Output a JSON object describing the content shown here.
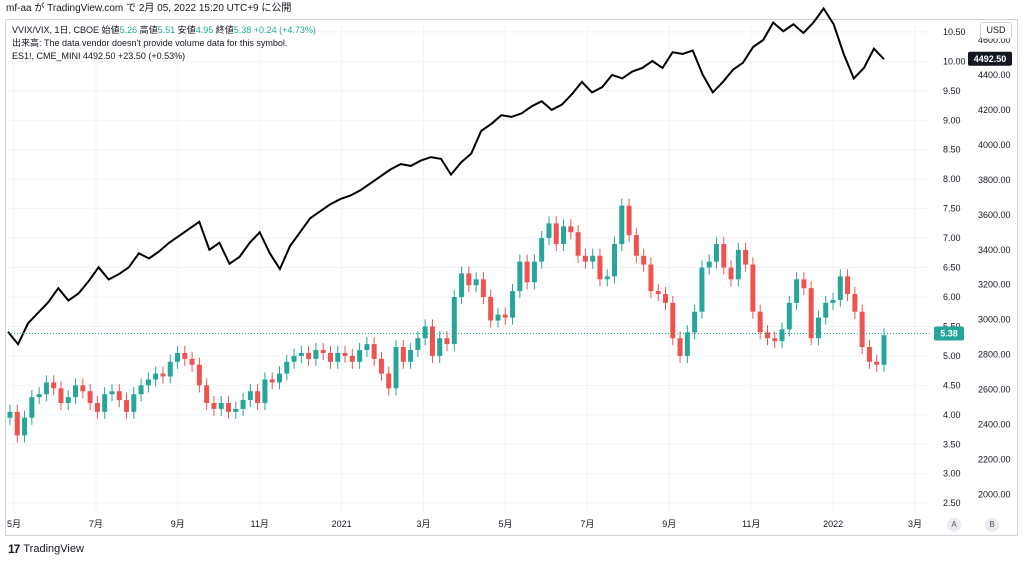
{
  "header": {
    "title": "mf-aa が TradingView.com で 2月 05, 2022 15:20 UTC+9 に公開"
  },
  "legend": {
    "symbol": "VVIX/VIX, 1日, CBOE",
    "open_label": "始値",
    "open": "5.26",
    "high_label": "高値",
    "high": "5.51",
    "low_label": "安値",
    "low": "4.95",
    "close_label": "終値",
    "close": "5.38",
    "change": "+0.24 (+4.73%)",
    "volume_note": "出来高: The data vendor doesn't provide volume data for this symbol.",
    "overlay": "ES1!, CME_MINI  4492.50  +23.50 (+0.53%)"
  },
  "currency_label": "USD",
  "footer_brand": "TradingView",
  "axis_buttons": {
    "a": "A",
    "b": "B"
  },
  "colors": {
    "up": "#26a69a",
    "down": "#ef5350",
    "overlay": "#000000",
    "current_label": "#26a69a"
  },
  "chart_data": {
    "type": "candlestick",
    "x_tick_labels": [
      "5月",
      "7月",
      "9月",
      "11月",
      "2021",
      "3月",
      "5月",
      "7月",
      "9月",
      "11月",
      "2022",
      "3月"
    ],
    "left_scale": {
      "ticks": [
        "10.50",
        "10.00",
        "9.50",
        "9.00",
        "8.50",
        "8.00",
        "7.50",
        "7.00",
        "6.50",
        "6.00",
        "5.50",
        "5.00",
        "4.50",
        "4.00",
        "3.50",
        "3.00",
        "2.50"
      ],
      "range": [
        2.35,
        10.6
      ]
    },
    "right_scale": {
      "ticks": [
        "4600.00",
        "4400.00",
        "4200.00",
        "4000.00",
        "3800.00",
        "3600.00",
        "3400.00",
        "3200.00",
        "3000.00",
        "2800.00",
        "2600.00",
        "2400.00",
        "2200.00",
        "2000.00"
      ],
      "range": [
        1900,
        4680
      ]
    },
    "current_label_left": "5.38",
    "current_label_right": "4492.50",
    "series": [
      {
        "name": "VVIX/VIX",
        "style": "candles",
        "closes": [
          4.05,
          3.65,
          3.95,
          4.3,
          4.35,
          4.55,
          4.45,
          4.2,
          4.3,
          4.5,
          4.4,
          4.2,
          4.05,
          4.35,
          4.4,
          4.25,
          4.05,
          4.35,
          4.5,
          4.6,
          4.7,
          4.65,
          4.9,
          5.05,
          4.95,
          4.85,
          4.5,
          4.2,
          4.1,
          4.2,
          4.05,
          4.1,
          4.25,
          4.4,
          4.2,
          4.6,
          4.55,
          4.7,
          4.9,
          5.0,
          5.05,
          4.95,
          5.1,
          5.05,
          4.9,
          5.05,
          5.0,
          4.9,
          5.1,
          5.2,
          4.95,
          4.7,
          4.45,
          5.15,
          4.9,
          5.1,
          5.3,
          5.5,
          5.0,
          5.3,
          5.2,
          6.0,
          6.4,
          6.2,
          6.3,
          6.0,
          5.6,
          5.7,
          5.65,
          6.1,
          6.6,
          6.25,
          6.6,
          7.0,
          7.25,
          6.9,
          7.2,
          7.1,
          6.7,
          6.6,
          6.7,
          6.3,
          6.35,
          6.9,
          7.55,
          7.05,
          6.7,
          6.55,
          6.1,
          6.05,
          5.9,
          5.3,
          5.0,
          5.4,
          5.75,
          6.5,
          6.6,
          6.9,
          6.5,
          6.3,
          6.8,
          6.55,
          5.75,
          5.4,
          5.3,
          5.25,
          5.45,
          5.9,
          6.3,
          6.15,
          5.3,
          5.65,
          5.9,
          5.95,
          6.35,
          6.05,
          5.75,
          5.15,
          4.9,
          4.85,
          5.35
        ],
        "note": "Daily candles from May 2020 to Feb 2022; values read approximately from the left price scale"
      },
      {
        "name": "ES1!",
        "style": "line",
        "closes": [
          2930,
          2860,
          2980,
          3040,
          3100,
          3180,
          3110,
          3150,
          3220,
          3300,
          3230,
          3260,
          3300,
          3380,
          3350,
          3390,
          3440,
          3480,
          3520,
          3560,
          3400,
          3440,
          3320,
          3360,
          3440,
          3500,
          3380,
          3290,
          3420,
          3500,
          3580,
          3620,
          3660,
          3690,
          3710,
          3740,
          3780,
          3820,
          3860,
          3890,
          3880,
          3910,
          3930,
          3920,
          3830,
          3900,
          3950,
          4080,
          4120,
          4170,
          4160,
          4180,
          4220,
          4250,
          4200,
          4230,
          4290,
          4360,
          4300,
          4330,
          4400,
          4380,
          4420,
          4440,
          4480,
          4440,
          4530,
          4520,
          4540,
          4400,
          4300,
          4360,
          4430,
          4470,
          4560,
          4600,
          4700,
          4650,
          4690,
          4640,
          4700,
          4780,
          4690,
          4520,
          4380,
          4440,
          4550,
          4490
        ],
        "note": "Overlay line approximated from the right price scale"
      }
    ]
  }
}
